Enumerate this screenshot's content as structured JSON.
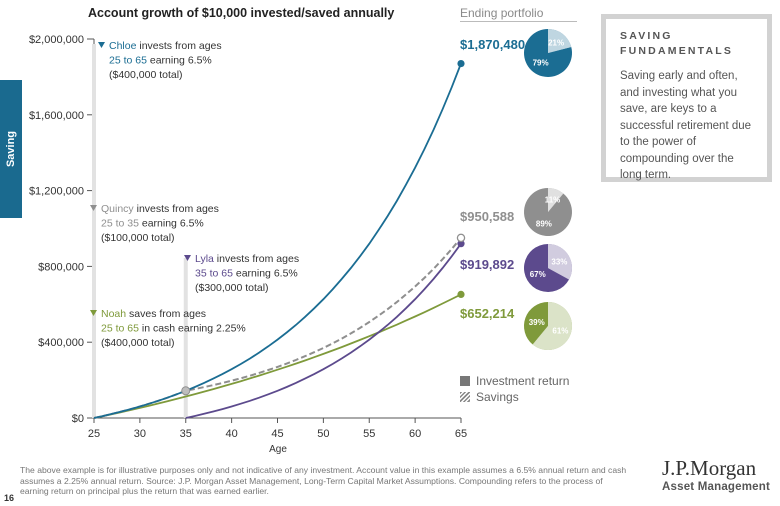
{
  "title": "Account growth of $10,000 invested/saved annually",
  "side_tab": "Saving",
  "ending_portfolio_label": "Ending portfolio",
  "fundamentals": {
    "title_line1": "SAVING",
    "title_line2": "FUNDAMENTALS",
    "body": "Saving early and often, and investing what you save, are keys to a successful retirement due to the power of compounding over the long term."
  },
  "legend": {
    "investment": "Investment return",
    "savings": "Savings"
  },
  "footnote": "The above example is for illustrative purposes only and not indicative of any investment. Account value in this example assumes a 6.5% annual return and cash assumes a 2.25% annual return. Source: J.P. Morgan Asset Management, Long-Term Capital Market Assumptions. Compounding refers to the process of earning return on principal plus the return that was earned earlier.",
  "page_number": "16",
  "logo": {
    "name": "J.P.Morgan",
    "sub": "Asset Management"
  },
  "colors": {
    "chloe": "#1b6d93",
    "quincy": "#8f8f8f",
    "lyla": "#5c4a8d",
    "noah": "#7f9a3b",
    "side_tab": "#1a6a8f"
  },
  "chart_data": {
    "type": "line",
    "title": "Account growth of $10,000 invested/saved annually",
    "xlabel": "Age",
    "ylabel": "",
    "xlim": [
      25,
      65
    ],
    "ylim": [
      0,
      2000000
    ],
    "x_ticks": [
      25,
      30,
      35,
      40,
      45,
      50,
      55,
      60,
      65
    ],
    "y_ticks": [
      0,
      400000,
      800000,
      1200000,
      1600000,
      2000000
    ],
    "y_tick_labels": [
      "$0",
      "$400,000",
      "$800,000",
      "$1,200,000",
      "$1,600,000",
      "$2,000,000"
    ],
    "grid": false,
    "series": [
      {
        "key": "chloe",
        "start_age": 25,
        "invest_until": 65,
        "rate": 0.065,
        "dashed": false,
        "label_name": "Chloe",
        "label_rest": "invests from ages",
        "label_line2a": "25 to 65",
        "label_line2b": "earning 6.5%",
        "label_line3": "($400,000 total)",
        "ending_value_text": "$1,870,480",
        "ending_value": 1870480,
        "investment_pct": 79,
        "savings_pct": 21
      },
      {
        "key": "quincy",
        "start_age": 25,
        "invest_until": 35,
        "rate": 0.065,
        "dashed": true,
        "label_name": "Quincy",
        "label_rest": "invests from ages",
        "label_line2a": "25 to 35",
        "label_line2b": "earning 6.5%",
        "label_line3": "($100,000 total)",
        "ending_value_text": "$950,588",
        "ending_value": 950588,
        "investment_pct": 89,
        "savings_pct": 11
      },
      {
        "key": "lyla",
        "start_age": 35,
        "invest_until": 65,
        "rate": 0.065,
        "dashed": false,
        "label_name": "Lyla",
        "label_rest": "invests from ages",
        "label_line2a": "35 to 65",
        "label_line2b": "earning 6.5%",
        "label_line3": "($300,000 total)",
        "ending_value_text": "$919,892",
        "ending_value": 919892,
        "investment_pct": 67,
        "savings_pct": 33
      },
      {
        "key": "noah",
        "start_age": 25,
        "invest_until": 65,
        "rate": 0.0225,
        "dashed": false,
        "label_name": "Noah",
        "label_rest": "saves from ages",
        "label_line2a": "25 to 65",
        "label_line2b": "in cash earning 2.25%",
        "label_line3": "($400,000 total)",
        "ending_value_text": "$652,214",
        "ending_value": 652214,
        "investment_pct": 39,
        "savings_pct": 61
      }
    ]
  }
}
